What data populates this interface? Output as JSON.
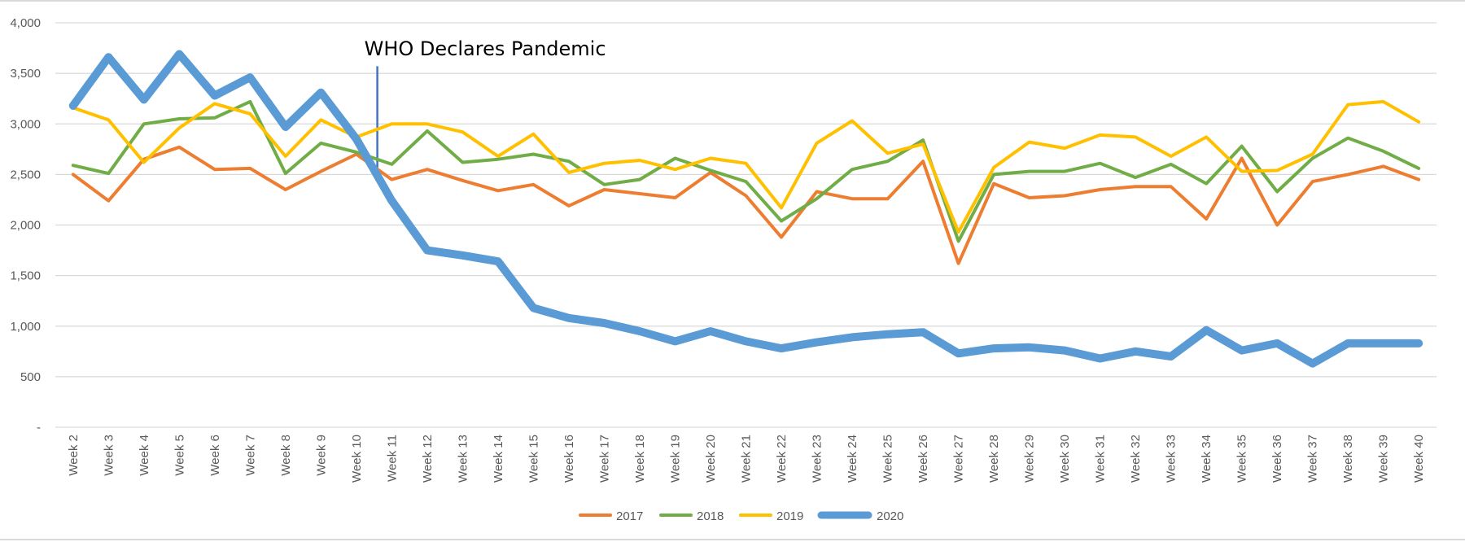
{
  "chart_data": {
    "type": "line",
    "title": "",
    "xlabel": "",
    "ylabel": "",
    "ylim": [
      0,
      4000
    ],
    "y_ticks": [
      {
        "value": 0,
        "label": "-"
      },
      {
        "value": 500,
        "label": "500"
      },
      {
        "value": 1000,
        "label": "1,000"
      },
      {
        "value": 1500,
        "label": "1,500"
      },
      {
        "value": 2000,
        "label": "2,000"
      },
      {
        "value": 2500,
        "label": "2,500"
      },
      {
        "value": 3000,
        "label": "3,000"
      },
      {
        "value": 3500,
        "label": "3,500"
      },
      {
        "value": 4000,
        "label": "4,000"
      }
    ],
    "grid": true,
    "legend_position": "bottom",
    "categories": [
      "Week 2",
      "Week 3",
      "Week 4",
      "Week 5",
      "Week 6",
      "Week 7",
      "Week 8",
      "Week 9",
      "Week 10",
      "Week 11",
      "Week 12",
      "Week 13",
      "Week 14",
      "Week 15",
      "Week 16",
      "Week 17",
      "Week 18",
      "Week 19",
      "Week 20",
      "Week 21",
      "Week 22",
      "Week 23",
      "Week 24",
      "Week 25",
      "Week 26",
      "Week 27",
      "Week 28",
      "Week 29",
      "Week 30",
      "Week 31",
      "Week 32",
      "Week 33",
      "Week 34",
      "Week 35",
      "Week 36",
      "Week 37",
      "Week 38",
      "Week 39",
      "Week 40"
    ],
    "series": [
      {
        "name": "2017",
        "color": "#ED7D31",
        "emphasis": false,
        "values": [
          2500,
          2240,
          2650,
          2770,
          2550,
          2560,
          2350,
          2530,
          2700,
          2450,
          2550,
          2440,
          2340,
          2400,
          2190,
          2350,
          2310,
          2270,
          2520,
          2290,
          1880,
          2330,
          2260,
          2260,
          2630,
          1620,
          2410,
          2270,
          2290,
          2350,
          2380,
          2380,
          2060,
          2660,
          2000,
          2430,
          2500,
          2580,
          2450
        ]
      },
      {
        "name": "2018",
        "color": "#70AD47",
        "emphasis": false,
        "values": [
          2590,
          2510,
          3000,
          3050,
          3060,
          3220,
          2510,
          2810,
          2720,
          2600,
          2930,
          2620,
          2650,
          2700,
          2630,
          2400,
          2450,
          2660,
          2540,
          2430,
          2040,
          2260,
          2550,
          2630,
          2840,
          1840,
          2500,
          2530,
          2530,
          2610,
          2470,
          2600,
          2410,
          2780,
          2330,
          2660,
          2860,
          2730,
          2560
        ]
      },
      {
        "name": "2019",
        "color": "#FFC000",
        "emphasis": false,
        "values": [
          3160,
          3040,
          2620,
          2960,
          3200,
          3100,
          2680,
          3040,
          2870,
          3000,
          3000,
          2920,
          2680,
          2900,
          2520,
          2610,
          2640,
          2550,
          2660,
          2610,
          2170,
          2810,
          3030,
          2710,
          2800,
          1930,
          2570,
          2820,
          2760,
          2890,
          2870,
          2680,
          2870,
          2530,
          2540,
          2700,
          3190,
          3220,
          3020
        ]
      },
      {
        "name": "2020",
        "color": "#5B9BD5",
        "emphasis": true,
        "values": [
          3180,
          3660,
          3240,
          3690,
          3280,
          3460,
          2970,
          3310,
          2850,
          2240,
          1750,
          1700,
          1640,
          1180,
          1080,
          1030,
          950,
          850,
          950,
          850,
          780,
          840,
          890,
          920,
          940,
          730,
          780,
          790,
          760,
          680,
          750,
          700,
          960,
          760,
          830,
          630,
          830,
          830,
          830
        ]
      }
    ],
    "annotations": [
      {
        "text": "WHO Declares Pandemic",
        "x_between": [
          "Week 10",
          "Week 11"
        ],
        "y_from": 2450,
        "y_to": 3570,
        "color": "#4472C4"
      }
    ]
  }
}
